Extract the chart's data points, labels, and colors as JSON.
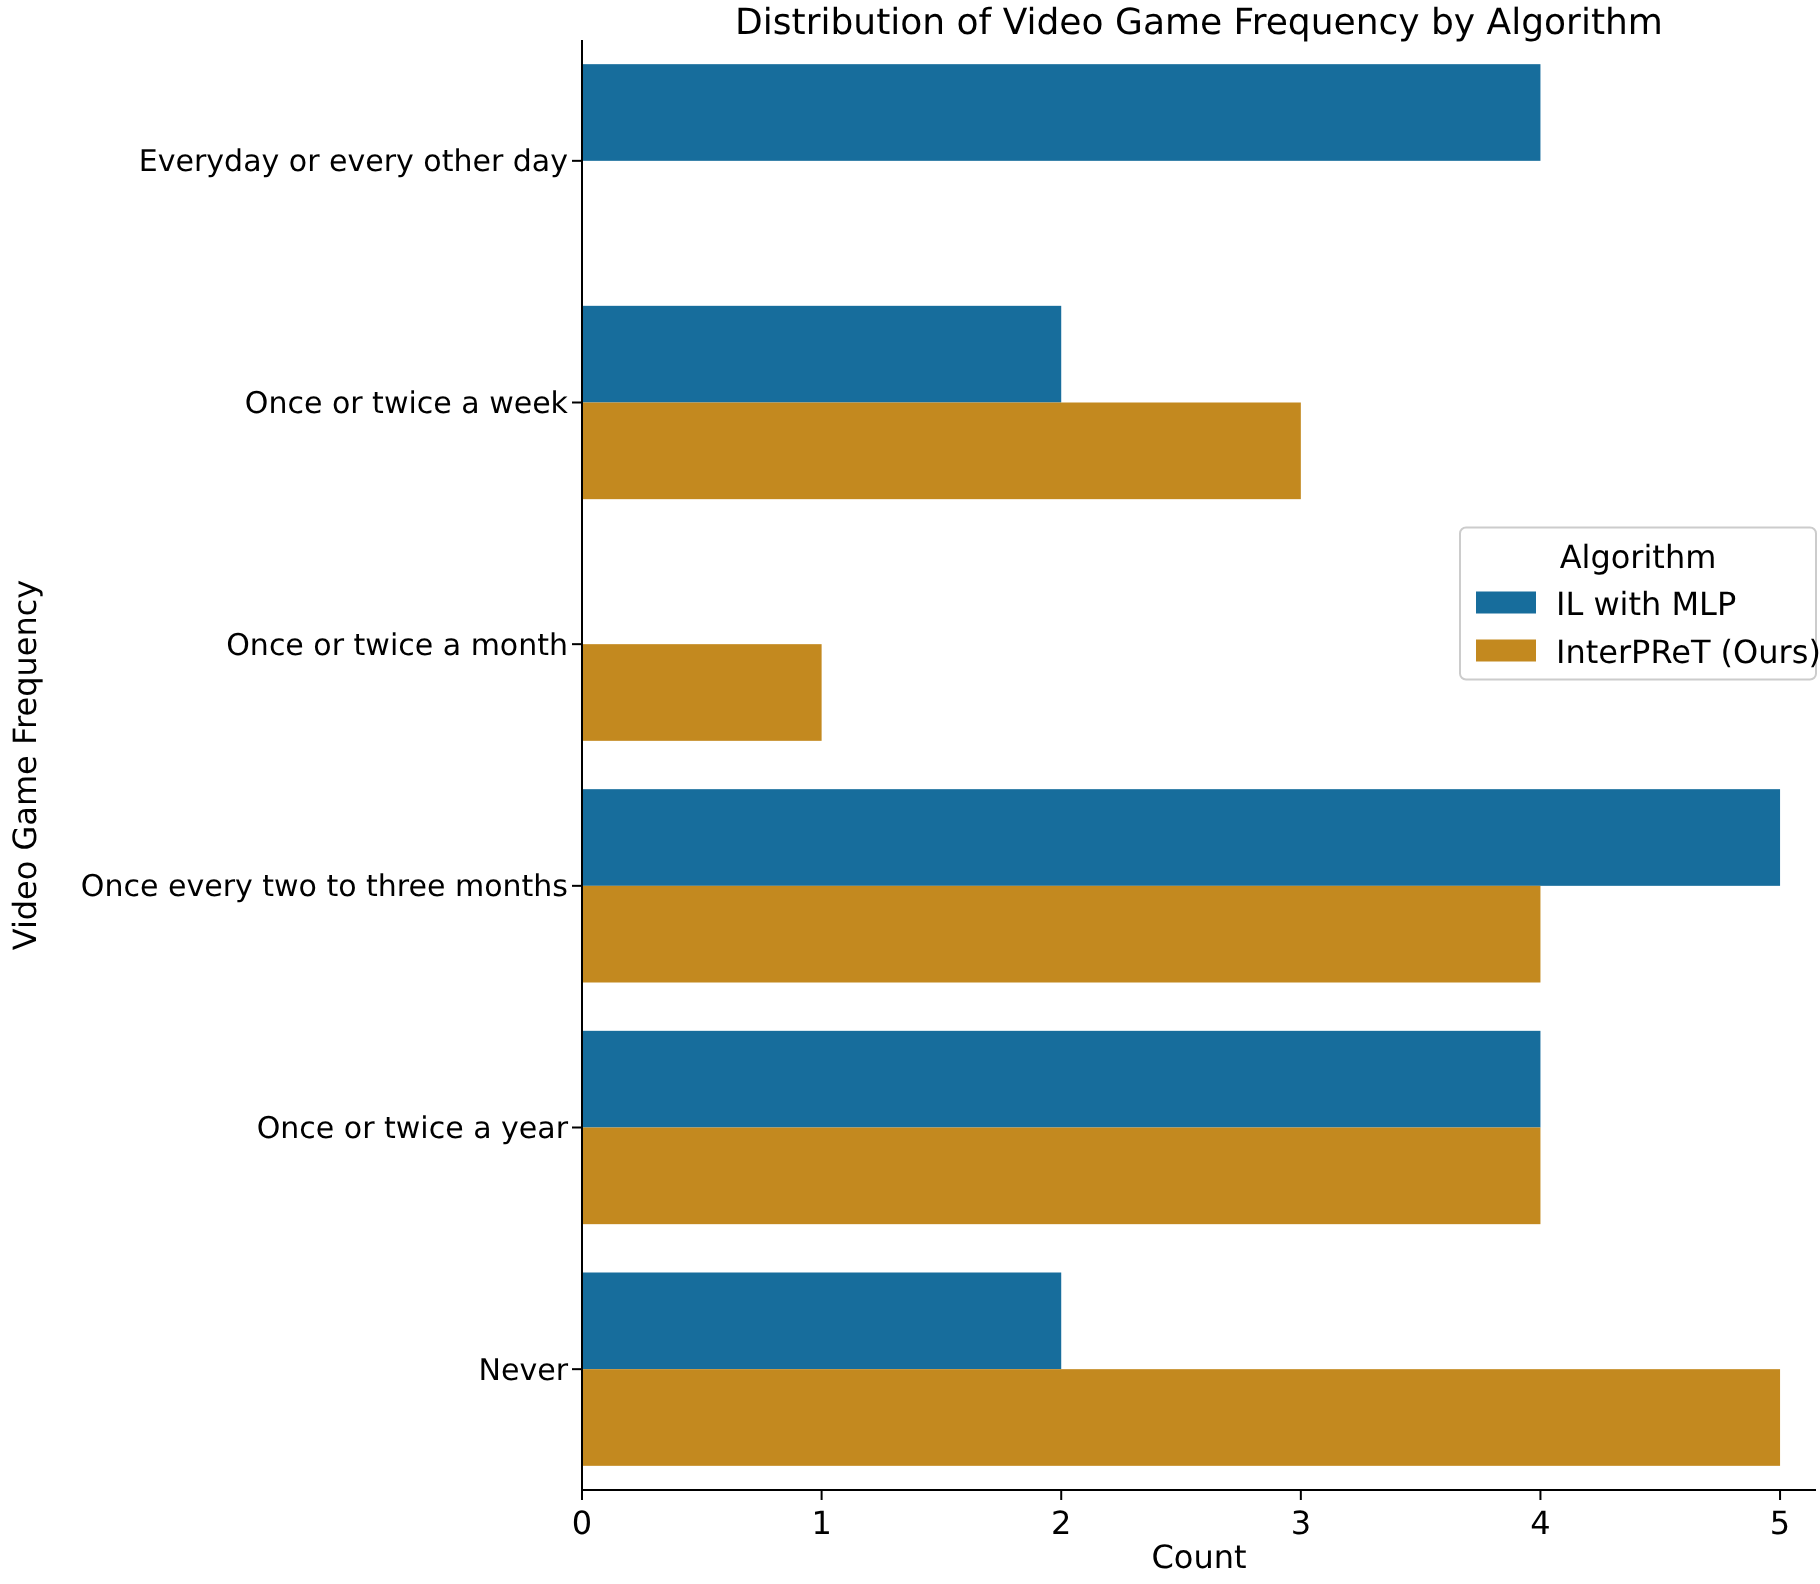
{
  "chart_data": {
    "type": "bar",
    "orientation": "horizontal",
    "title": "Distribution of Video Game Frequency by Algorithm",
    "xlabel": "Count",
    "ylabel": "Video Game Frequency",
    "legend_title": "Algorithm",
    "legend": "right",
    "categories": [
      "Everyday or every other day",
      "Once or twice a week",
      "Once or twice a month",
      "Once every two to three months",
      "Once or twice a year",
      "Never"
    ],
    "series": [
      {
        "name": "IL with MLP",
        "color": "#176d9c",
        "values": [
          4,
          2,
          0,
          5,
          4,
          2
        ]
      },
      {
        "name": "InterPReT (Ours)",
        "color": "#c3891f",
        "values": [
          0,
          3,
          1,
          4,
          4,
          5
        ]
      }
    ],
    "xlim": [
      0,
      5.15
    ],
    "xticks": [
      0,
      1,
      2,
      3,
      4,
      5
    ]
  }
}
